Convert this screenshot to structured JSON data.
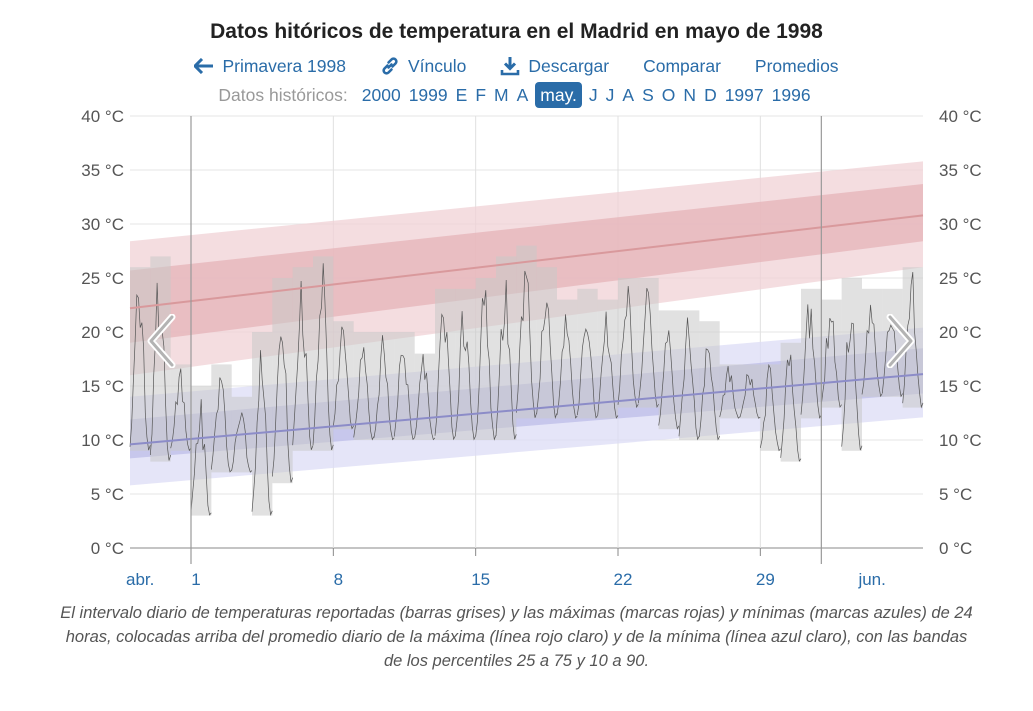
{
  "title": "Datos hitóricos de temperatura en el Madrid en mayo de 1998",
  "nav": {
    "prev_label": "Primavera 1998",
    "link_label": "Vínculo",
    "download_label": "Descargar",
    "compare_label": "Comparar",
    "averages_label": "Promedios"
  },
  "history": {
    "label": "Datos históricos:",
    "items": [
      "2000",
      "1999",
      "E",
      "F",
      "M",
      "A",
      "may.",
      "J",
      "J",
      "A",
      "S",
      "O",
      "N",
      "D",
      "1997",
      "1996"
    ],
    "active": "may."
  },
  "icons": [
    "arrow-left-icon",
    "link-icon",
    "download-icon",
    "chevron-left-icon",
    "chevron-right-icon"
  ],
  "caption": "El intervalo diario de temperaturas reportadas (barras grises) y las máximas (marcas rojas) y mínimas (marcas azules) de 24 horas, colocadas arriba del promedio diario de la máxima (línea rojo claro) y de la mínima (línea azul claro), con las bandas de los percentiles 25 a 75 y 10 a 90.",
  "colors": {
    "accent": "#2a6ca8",
    "max_band_outer": "#f0d2d5",
    "max_band_inner": "#e6b3b8",
    "max_line": "#d9999c",
    "min_band_outer": "#dcdcf6",
    "min_band_inner": "#bcbce8",
    "min_line": "#8c8cc8",
    "range_bar": "#c8c8c8"
  },
  "chart_data": {
    "type": "bar",
    "x_range": [
      "1998-04-28",
      "1998-06-05"
    ],
    "ylim": [
      0,
      40
    ],
    "y_ticks": [
      0,
      5,
      10,
      15,
      20,
      25,
      30,
      35,
      40
    ],
    "y_tick_labels": [
      "0 °C",
      "5 °C",
      "10 °C",
      "15 °C",
      "20 °C",
      "25 °C",
      "30 °C",
      "35 °C",
      "40 °C"
    ],
    "x_tick_labels": [
      {
        "date": "1998-05-01",
        "label": "1"
      },
      {
        "date": "1998-05-08",
        "label": "8"
      },
      {
        "date": "1998-05-15",
        "label": "15"
      },
      {
        "date": "1998-05-22",
        "label": "22"
      },
      {
        "date": "1998-05-29",
        "label": "29"
      }
    ],
    "month_labels": [
      {
        "date": "1998-04-28",
        "label": "abr."
      },
      {
        "date": "1998-06-03",
        "label": "jun."
      }
    ],
    "month_boundaries": [
      "1998-05-01",
      "1998-06-01"
    ],
    "grid": true,
    "daily_range": [
      {
        "date": "1998-04-28",
        "low": 9,
        "high": 26
      },
      {
        "date": "1998-04-29",
        "low": 8,
        "high": 27
      },
      {
        "date": "1998-04-30",
        "low": 9,
        "high": 17
      },
      {
        "date": "1998-05-01",
        "low": 3,
        "high": 15
      },
      {
        "date": "1998-05-02",
        "low": 7,
        "high": 17
      },
      {
        "date": "1998-05-03",
        "low": 7,
        "high": 14
      },
      {
        "date": "1998-05-04",
        "low": 3,
        "high": 20
      },
      {
        "date": "1998-05-05",
        "low": 6,
        "high": 25
      },
      {
        "date": "1998-05-06",
        "low": 9,
        "high": 26
      },
      {
        "date": "1998-05-07",
        "low": 9,
        "high": 27
      },
      {
        "date": "1998-05-08",
        "low": 11,
        "high": 21
      },
      {
        "date": "1998-05-09",
        "low": 10,
        "high": 20
      },
      {
        "date": "1998-05-10",
        "low": 10,
        "high": 20
      },
      {
        "date": "1998-05-11",
        "low": 10,
        "high": 20
      },
      {
        "date": "1998-05-12",
        "low": 10,
        "high": 18
      },
      {
        "date": "1998-05-13",
        "low": 10,
        "high": 24
      },
      {
        "date": "1998-05-14",
        "low": 10,
        "high": 24
      },
      {
        "date": "1998-05-15",
        "low": 10,
        "high": 25
      },
      {
        "date": "1998-05-16",
        "low": 10,
        "high": 27
      },
      {
        "date": "1998-05-17",
        "low": 12,
        "high": 28
      },
      {
        "date": "1998-05-18",
        "low": 12,
        "high": 26
      },
      {
        "date": "1998-05-19",
        "low": 12,
        "high": 23
      },
      {
        "date": "1998-05-20",
        "low": 12,
        "high": 24
      },
      {
        "date": "1998-05-21",
        "low": 12,
        "high": 23
      },
      {
        "date": "1998-05-22",
        "low": 13,
        "high": 25
      },
      {
        "date": "1998-05-23",
        "low": 13,
        "high": 25
      },
      {
        "date": "1998-05-24",
        "low": 11,
        "high": 22
      },
      {
        "date": "1998-05-25",
        "low": 10,
        "high": 22
      },
      {
        "date": "1998-05-26",
        "low": 10,
        "high": 21
      },
      {
        "date": "1998-05-27",
        "low": 12,
        "high": 17
      },
      {
        "date": "1998-05-28",
        "low": 12,
        "high": 17
      },
      {
        "date": "1998-05-29",
        "low": 9,
        "high": 17
      },
      {
        "date": "1998-05-30",
        "low": 8,
        "high": 19
      },
      {
        "date": "1998-05-31",
        "low": 12,
        "high": 24
      },
      {
        "date": "1998-06-01",
        "low": 13,
        "high": 23
      },
      {
        "date": "1998-06-02",
        "low": 9,
        "high": 25
      },
      {
        "date": "1998-06-03",
        "low": 14,
        "high": 24
      },
      {
        "date": "1998-06-04",
        "low": 14,
        "high": 24
      },
      {
        "date": "1998-06-05",
        "low": 13,
        "high": 26
      }
    ],
    "avg_max": {
      "start": 22.2,
      "end": 30.8
    },
    "max_band_p25_p75": {
      "start": [
        19.0,
        25.7
      ],
      "end": [
        28.4,
        33.7
      ]
    },
    "max_band_p10_p90": {
      "start": [
        16.0,
        28.4
      ],
      "end": [
        26.0,
        35.8
      ]
    },
    "avg_min": {
      "start": 9.6,
      "end": 16.1
    },
    "min_band_p25_p75": {
      "start": [
        8.3,
        11.9
      ],
      "end": [
        14.3,
        18.5
      ]
    },
    "min_band_p10_p90": {
      "start": [
        5.8,
        14.0
      ],
      "end": [
        12.1,
        20.4
      ]
    }
  }
}
